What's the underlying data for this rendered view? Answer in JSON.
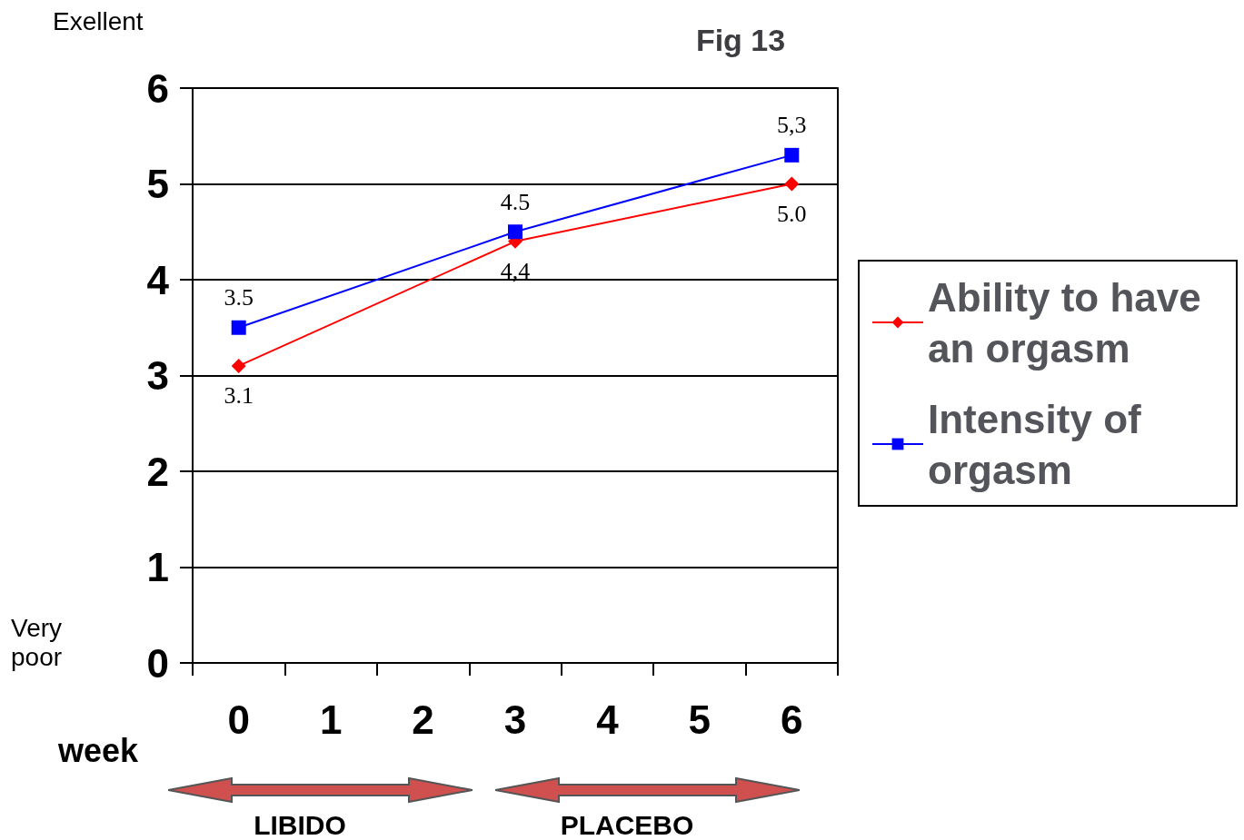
{
  "chart_data": {
    "type": "line",
    "title": "Fig 13",
    "xlabel": "week",
    "categories": [
      "0",
      "1",
      "2",
      "3",
      "4",
      "5",
      "6"
    ],
    "series": [
      {
        "name": "Ability to have an orgasm",
        "color": "#ff0000",
        "marker": "diamond",
        "values": [
          3.1,
          null,
          null,
          4.4,
          null,
          null,
          5.0
        ],
        "value_labels": [
          "3.1",
          null,
          null,
          "4,4",
          null,
          null,
          "5.0"
        ]
      },
      {
        "name": "Intensity of orgasm",
        "color": "#0000ff",
        "marker": "square",
        "values": [
          3.5,
          null,
          null,
          4.5,
          null,
          null,
          5.3
        ],
        "value_labels": [
          "3.5",
          null,
          null,
          "4.5",
          null,
          null,
          "5,3"
        ]
      }
    ],
    "ylim": [
      0,
      6
    ],
    "yticks": [
      0,
      1,
      2,
      3,
      4,
      5,
      6
    ],
    "grid": "y",
    "legend": "right",
    "line_style": "solid",
    "annotations": [
      "Exellent",
      "Very poor",
      "LIBIDO",
      "PLACEBO"
    ]
  }
}
